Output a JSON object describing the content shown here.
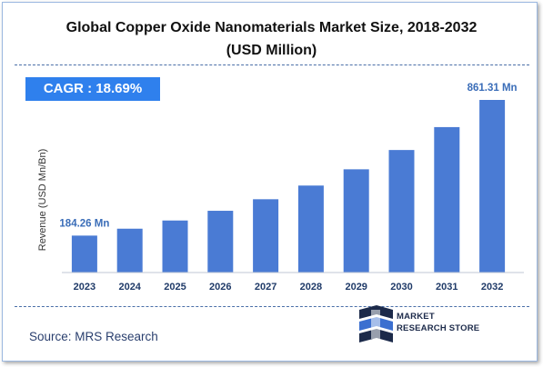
{
  "title_line1": "Global Copper Oxide Nanomaterials Market Size, 2018-2032",
  "title_line2": "(USD Million)",
  "cagr_label": "CAGR : 18.69%",
  "source": "Source: MRS Research",
  "logo": {
    "line1": "MARKET",
    "line2": "RESEARCH STORE"
  },
  "colors": {
    "bar": "#4a7bd4",
    "cagr_box": "#2f80ed",
    "data_label": "#3a6db8",
    "axis_text": "#1f3a68"
  },
  "chart_data": {
    "type": "bar",
    "categories": [
      "2023",
      "2024",
      "2025",
      "2026",
      "2027",
      "2028",
      "2029",
      "2030",
      "2031",
      "2032"
    ],
    "values": [
      184.26,
      218.7,
      259.6,
      308.1,
      365.7,
      434.0,
      515.1,
      611.4,
      725.7,
      861.31
    ],
    "ylabel": "Revenue (USD Mn/Bn)",
    "data_labels": [
      {
        "index": 0,
        "text": "184.26 Mn"
      },
      {
        "index": 9,
        "text": "861.31 Mn"
      }
    ],
    "ylim": [
      0,
      900
    ],
    "grid": false,
    "legend": "none"
  }
}
